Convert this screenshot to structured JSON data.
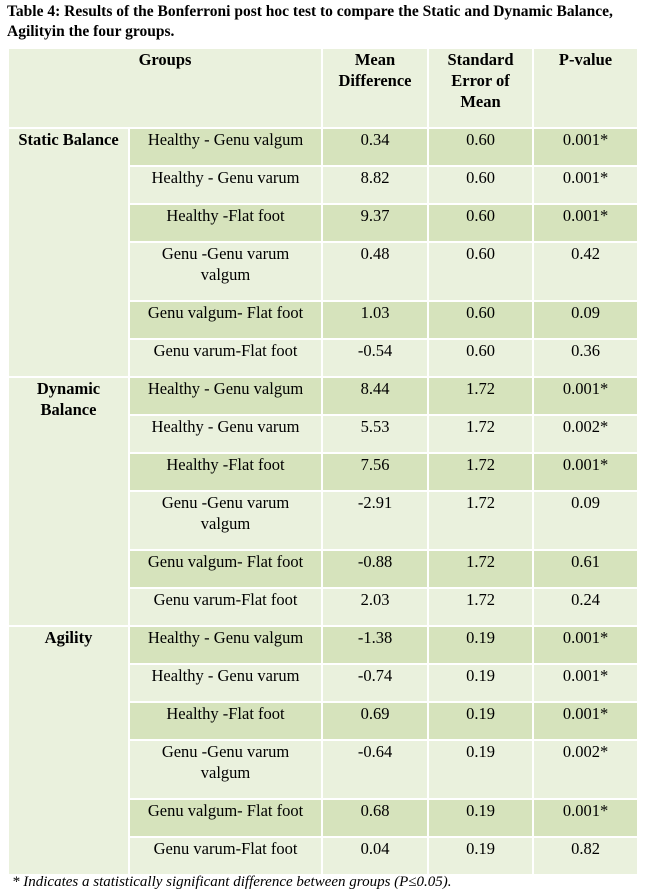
{
  "caption": "Table 4: Results of the Bonferroni post hoc test to compare the Static and Dynamic Balance, Agilityin the four groups.",
  "headers": {
    "groups": "Groups",
    "mean_difference": "Mean Difference",
    "standard_error": "Standard Error of Mean",
    "p_value": "P-value"
  },
  "sections": [
    {
      "label": "Static Balance",
      "rows": [
        {
          "comparison": "Healthy - Genu valgum",
          "mean_diff": "0.34",
          "se": "0.60",
          "p": "0.001*"
        },
        {
          "comparison": "Healthy - Genu varum",
          "mean_diff": "8.82",
          "se": "0.60",
          "p": "0.001*"
        },
        {
          "comparison": "Healthy -Flat foot",
          "mean_diff": "9.37",
          "se": "0.60",
          "p": "0.001*"
        },
        {
          "comparison": "Genu -Genu varum valgum",
          "mean_diff": "0.48",
          "se": "0.60",
          "p": "0.42"
        },
        {
          "comparison": "Genu valgum- Flat foot",
          "mean_diff": "1.03",
          "se": "0.60",
          "p": "0.09"
        },
        {
          "comparison": "Genu varum-Flat foot",
          "mean_diff": "-0.54",
          "se": "0.60",
          "p": "0.36"
        }
      ]
    },
    {
      "label": "Dynamic Balance",
      "rows": [
        {
          "comparison": "Healthy - Genu valgum",
          "mean_diff": "8.44",
          "se": "1.72",
          "p": "0.001*"
        },
        {
          "comparison": "Healthy - Genu varum",
          "mean_diff": "5.53",
          "se": "1.72",
          "p": "0.002*"
        },
        {
          "comparison": "Healthy -Flat foot",
          "mean_diff": "7.56",
          "se": "1.72",
          "p": "0.001*"
        },
        {
          "comparison": "Genu -Genu varum valgum",
          "mean_diff": "-2.91",
          "se": "1.72",
          "p": "0.09"
        },
        {
          "comparison": "Genu valgum- Flat foot",
          "mean_diff": "-0.88",
          "se": "1.72",
          "p": "0.61"
        },
        {
          "comparison": "Genu varum-Flat foot",
          "mean_diff": "2.03",
          "se": "1.72",
          "p": "0.24"
        }
      ]
    },
    {
      "label": "Agility",
      "rows": [
        {
          "comparison": "Healthy - Genu valgum",
          "mean_diff": "-1.38",
          "se": "0.19",
          "p": "0.001*"
        },
        {
          "comparison": "Healthy - Genu varum",
          "mean_diff": "-0.74",
          "se": "0.19",
          "p": "0.001*"
        },
        {
          "comparison": "Healthy -Flat foot",
          "mean_diff": "0.69",
          "se": "0.19",
          "p": "0.001*"
        },
        {
          "comparison": "Genu -Genu varum valgum",
          "mean_diff": "-0.64",
          "se": "0.19",
          "p": "0.002*"
        },
        {
          "comparison": "Genu valgum- Flat foot",
          "mean_diff": "0.68",
          "se": "0.19",
          "p": "0.001*"
        },
        {
          "comparison": "Genu varum-Flat foot",
          "mean_diff": "0.04",
          "se": "0.19",
          "p": "0.82"
        }
      ]
    }
  ],
  "footnote": "* Indicates a statistically significant difference between groups (P≤0.05).",
  "colors": {
    "header_fill": "#eaf1dd",
    "row_dark": "#d6e3bc",
    "row_light": "#eaf1dd"
  }
}
